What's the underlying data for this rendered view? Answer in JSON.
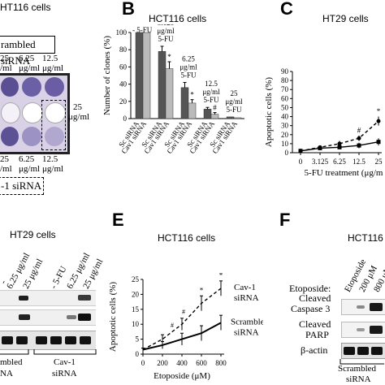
{
  "panelA": {
    "title": "HT116 cells",
    "scrambled_label": "rambled siRNA",
    "cav1_label": "-1 siRNA",
    "top_concs": [
      "25",
      "6.25",
      "12.5"
    ],
    "top_units": [
      "/ml",
      "μg/ml",
      "μg/ml"
    ],
    "bottom_concs": [
      "25",
      "6.25",
      "12.5"
    ],
    "bottom_units": [
      "/ml",
      "μg/ml",
      "μg/ml"
    ],
    "side_conc": "25",
    "side_unit": "μg/ml"
  },
  "panelB": {
    "letter": "B",
    "title": "HCT116 cells",
    "ylabel": "Number of clones (%)",
    "legend_5fu": "- 5-FU",
    "group_labels": [
      [
        "3.125",
        "μg/ml",
        "5-FU"
      ],
      [
        "6.25",
        "μg/ml",
        "5-FU"
      ],
      [
        "12.5",
        "μg/ml",
        "5-FU"
      ],
      [
        "25",
        "μg/ml",
        "5-FU"
      ]
    ],
    "xlabels": [
      "Sc siRNA",
      "Cav1 siRNA",
      "Sc siRNA",
      "Cav1 siRNA",
      "Sc siRNA",
      "Cav1 siRNA",
      "Sc siRNA",
      "Cav1 siRNA",
      "Sc siRNA",
      "Cav1 siRNA"
    ],
    "yticks": [
      "0",
      "20",
      "40",
      "60",
      "80",
      "100"
    ],
    "markers": [
      "*",
      "*",
      "#"
    ]
  },
  "panelC": {
    "letter": "C",
    "title": "HT29 cells",
    "ylabel": "Apoptotic cells (%)",
    "xlabel": "5-FU treatment (μg/m",
    "yticks": [
      "0",
      "10",
      "20",
      "30",
      "40",
      "50",
      "60",
      "70",
      "80",
      "90"
    ],
    "xticks": [
      "0",
      "3.125",
      "6.25",
      "12.5",
      "25"
    ],
    "markers": [
      "#",
      "*"
    ]
  },
  "panelD": {
    "title": "HT29 cells",
    "lane_labels": [
      "6.25 μg/ml",
      "25 μg/ml",
      "- 5-FU",
      "6.25 μg/ml",
      "25 μg/ml"
    ],
    "lane_label_partial": "-",
    "group_left": "mbled",
    "group_left2": "NA",
    "group_right": "Cav-1",
    "group_right2": "siRNA"
  },
  "panelE": {
    "letter": "E",
    "title": "HCT116 cells",
    "ylabel": "Apoptotic cells (%)",
    "xlabel": "Etoposide (μM)",
    "yticks": [
      "0",
      "5",
      "10",
      "15",
      "20",
      "25"
    ],
    "xticks": [
      "0",
      "200",
      "400",
      "600",
      "800"
    ],
    "legend_cav": [
      "Cav-1",
      "siRNA"
    ],
    "legend_sc": [
      "Scrambled",
      "siRNA"
    ],
    "markers": [
      "#",
      "#",
      "*",
      "*"
    ]
  },
  "panelF": {
    "letter": "F",
    "title": "HCT116",
    "etoposide_label": "Etoposide:",
    "lane_labels": [
      "Etoposide",
      "200 μM",
      "800 μM"
    ],
    "bands": [
      "Cleaved",
      "Caspase 3",
      "Cleaved",
      "PARP",
      "β-actin"
    ],
    "group": [
      "Scrambled",
      "siRNA"
    ]
  },
  "chart_data": [
    {
      "type": "bar",
      "title": "HCT116 cells",
      "ylabel": "Number of clones (%)",
      "categories": [
        "- 5-FU",
        "3.125 μg/ml 5-FU",
        "6.25 μg/ml 5-FU",
        "12.5 μg/ml 5-FU",
        "25 μg/ml 5-FU"
      ],
      "series": [
        {
          "name": "Sc siRNA",
          "values": [
            100,
            78,
            36,
            11,
            2
          ]
        },
        {
          "name": "Cav1 siRNA",
          "values": [
            100,
            58,
            18,
            5,
            1
          ]
        }
      ],
      "ylim": [
        0,
        100
      ]
    },
    {
      "type": "line",
      "title": "HT29 cells",
      "xlabel": "5-FU treatment (μg/m",
      "ylabel": "Apoptotic cells (%)",
      "x": [
        "0",
        "3.125",
        "6.25",
        "12.5",
        "25"
      ],
      "series": [
        {
          "values": [
            2,
            6,
            10,
            16,
            35
          ]
        },
        {
          "values": [
            2,
            5,
            6,
            8,
            12
          ]
        }
      ],
      "ylim": [
        0,
        90
      ]
    },
    {
      "type": "line",
      "title": "HCT116 cells",
      "xlabel": "Etoposide (μM)",
      "ylabel": "Apoptotic cells (%)",
      "x": [
        0,
        200,
        400,
        600,
        800
      ],
      "series": [
        {
          "name": "Cav-1 siRNA",
          "values": [
            1.5,
            5,
            10,
            17,
            22
          ]
        },
        {
          "name": "Scrambled siRNA",
          "values": [
            1.5,
            3,
            5,
            7,
            10.5
          ]
        }
      ],
      "ylim": [
        0,
        25
      ]
    }
  ]
}
